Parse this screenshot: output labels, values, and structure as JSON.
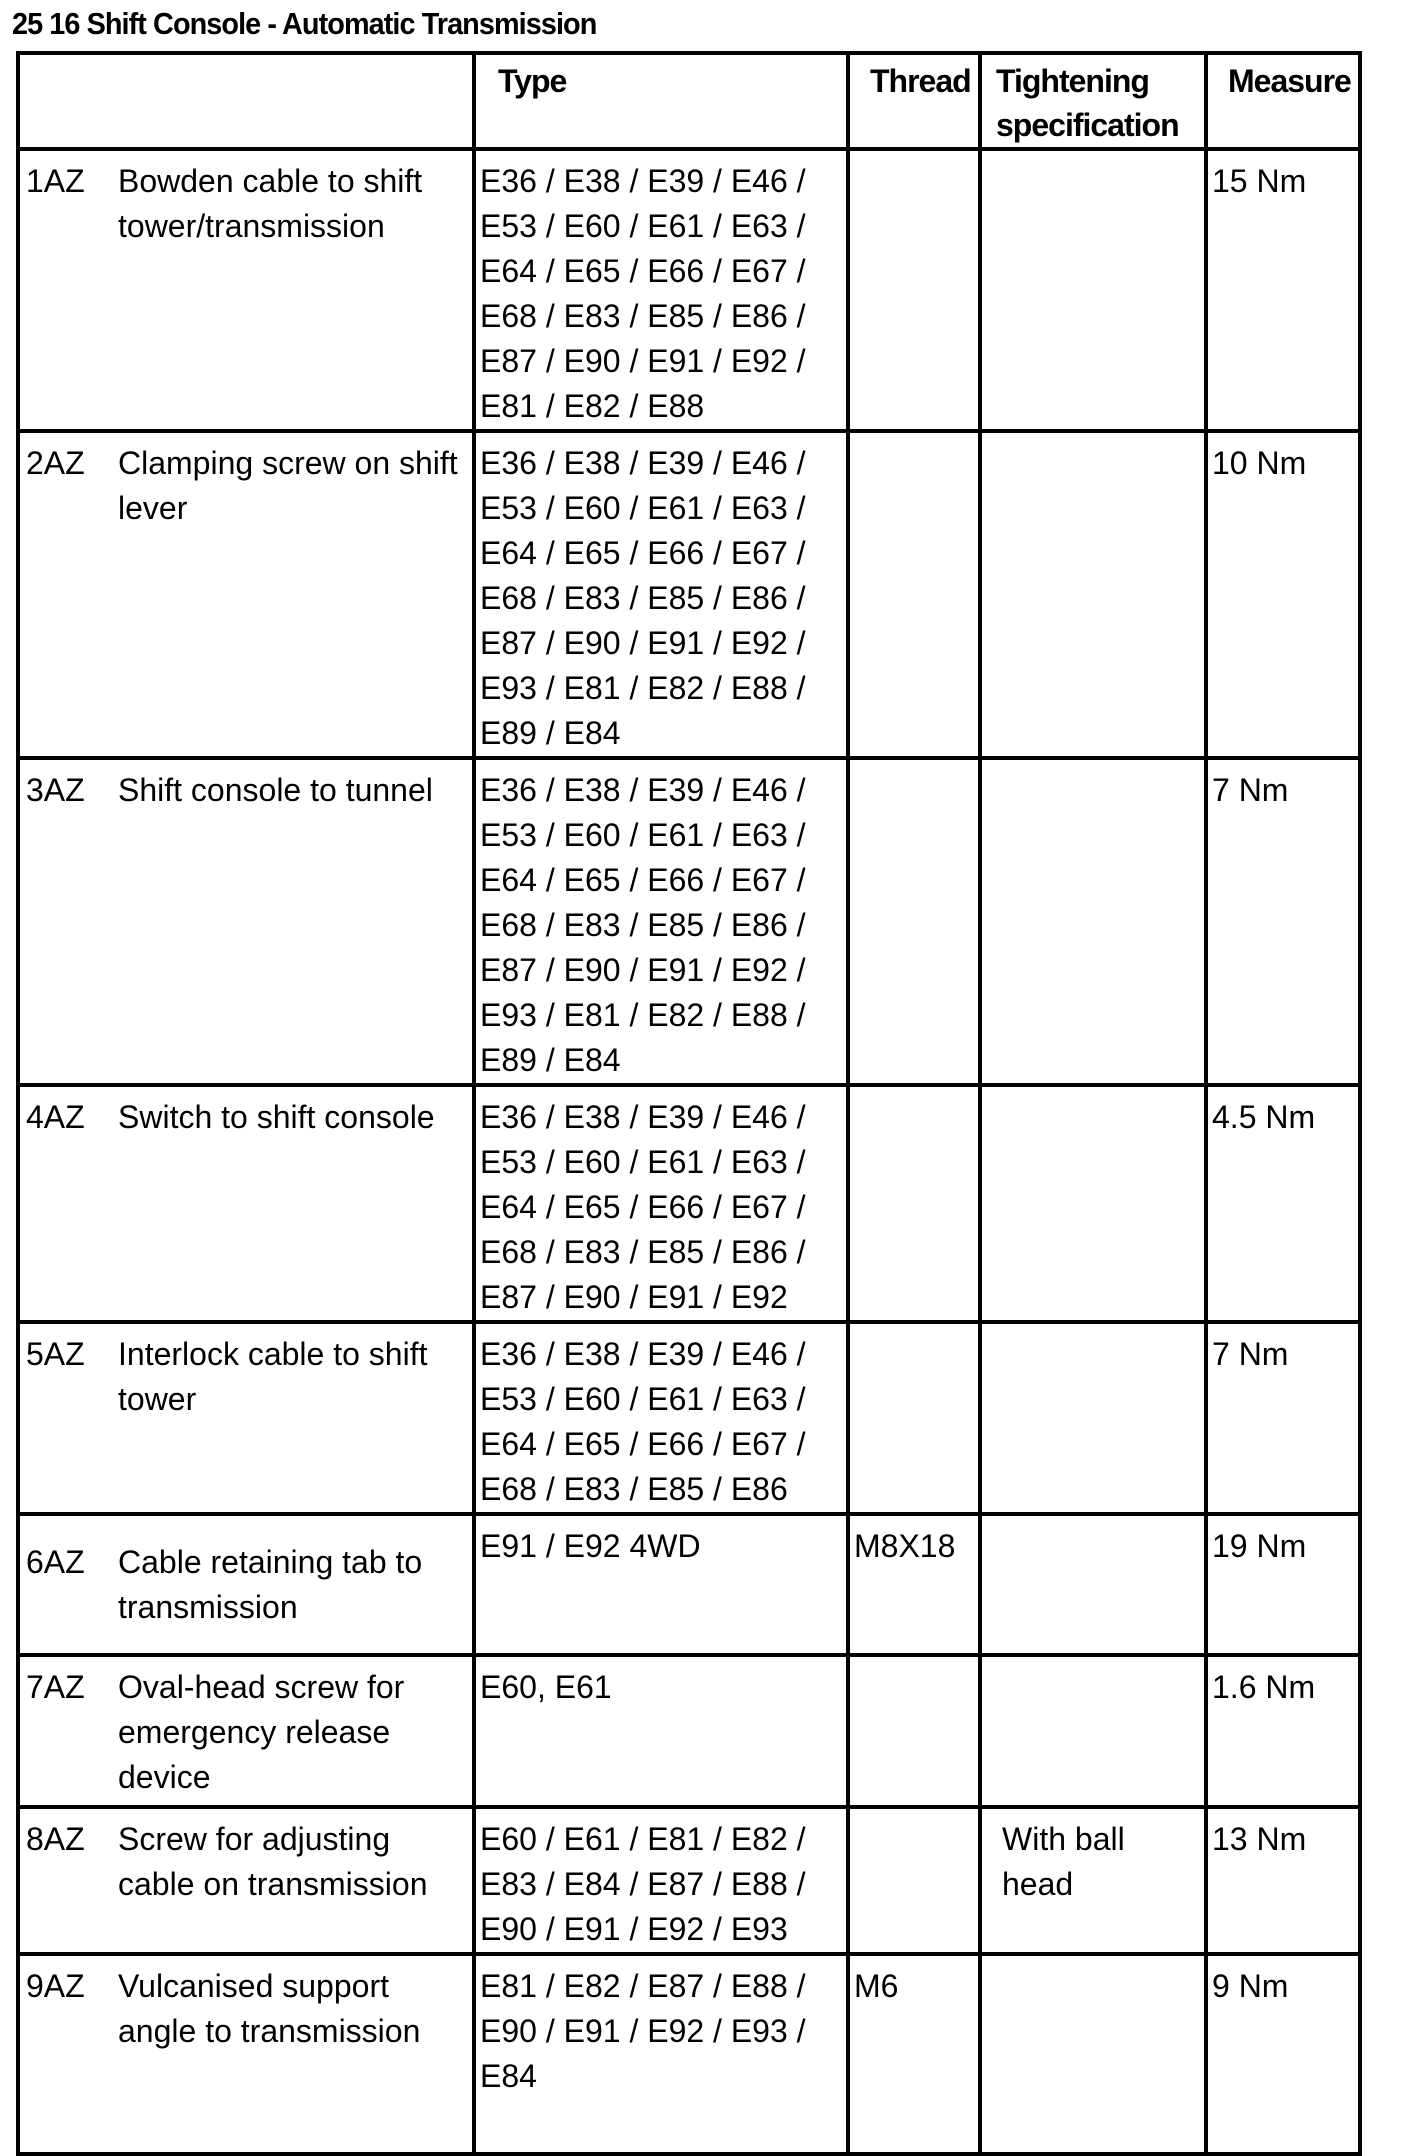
{
  "title": "25 16 Shift Console - Automatic Transmission",
  "headers": {
    "label": "",
    "type": "Type",
    "thread": "Thread",
    "tightening": "Tightening specification",
    "measure": "Measure"
  },
  "rows": [
    {
      "num": "1AZ",
      "desc": "Bowden cable to shift tower/transmission",
      "type": "E36 / E38 / E39 / E46 / E53 / E60 / E61 / E63 / E64 / E65 / E66 / E67 / E68 / E83 / E85 / E86 / E87 / E90 / E91 / E92 / E81 / E82 / E88",
      "thread": "",
      "spec": "",
      "measure": "15 Nm"
    },
    {
      "num": "2AZ",
      "desc": "Clamping screw on shift lever",
      "type": "E36 / E38 / E39 / E46 / E53 / E60 / E61 / E63 / E64 / E65 / E66 / E67 / E68 / E83 / E85 / E86 / E87 / E90 / E91 / E92 / E93 / E81 / E82 / E88 / E89 / E84",
      "thread": "",
      "spec": "",
      "measure": "10 Nm"
    },
    {
      "num": "3AZ",
      "desc": "Shift console to tunnel",
      "type": "E36 / E38 / E39 / E46 / E53 / E60 / E61 / E63 / E64 / E65 / E66 / E67 / E68 / E83 / E85 / E86 / E87 / E90 / E91 / E92 / E93 / E81 / E82 / E88 / E89 / E84",
      "thread": "",
      "spec": "",
      "measure": "7 Nm"
    },
    {
      "num": "4AZ",
      "desc": "Switch to shift console",
      "type": "E36 / E38 / E39 / E46 / E53 / E60 / E61 / E63 / E64 / E65 / E66 / E67 / E68 / E83 / E85 / E86 / E87 / E90 / E91 / E92",
      "thread": "",
      "spec": "",
      "measure": "4.5 Nm"
    },
    {
      "num": "5AZ",
      "desc": "Interlock cable to shift tower",
      "type": "E36 / E38 / E39 / E46 / E53 / E60 / E61 / E63 / E64 / E65 / E66 / E67 / E68 / E83 / E85 / E86",
      "thread": "",
      "spec": "",
      "measure": "7 Nm"
    },
    {
      "num": "6AZ",
      "desc": "Cable retaining tab to transmission",
      "type": "E91 / E92 4WD",
      "thread": "M8X18",
      "spec": "",
      "measure": "19 Nm"
    },
    {
      "num": "7AZ",
      "desc": "Oval-head screw for emergency release device",
      "type": "E60, E61",
      "thread": "",
      "spec": "",
      "measure": "1.6 Nm"
    },
    {
      "num": "8AZ",
      "desc": "Screw for adjusting cable on transmission",
      "type": "E60 / E61 / E81 / E82 / E83 / E84 / E87 / E88 / E90 / E91 / E92 / E93",
      "thread": "",
      "spec": "With ball head",
      "measure": "13 Nm"
    },
    {
      "num": "9AZ",
      "desc": "Vulcanised support angle to transmission",
      "type": "E81 / E82 / E87 / E88 / E90 / E91 / E92 / E93 / E84",
      "thread": "M6",
      "spec": "",
      "measure": "9 Nm"
    }
  ]
}
